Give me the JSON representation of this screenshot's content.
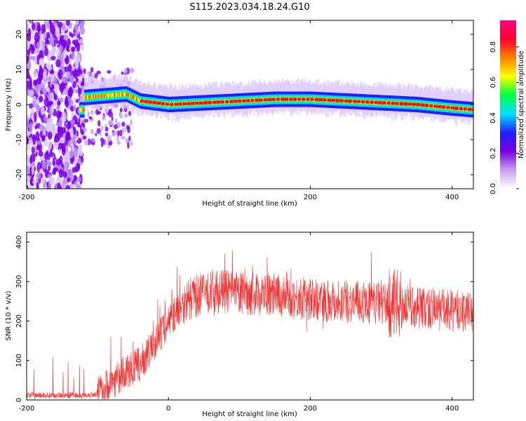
{
  "title": "S115.2023.034.18.24.G10",
  "chart_data": [
    {
      "type": "heatmap",
      "xlabel": "Height of straight line (km)",
      "ylabel": "Frequency (Hz)",
      "xlim": [
        -200,
        430
      ],
      "ylim": [
        -24,
        24
      ],
      "x_ticks": [
        -200,
        0,
        200,
        400
      ],
      "y_ticks": [
        -20,
        -10,
        0,
        10,
        20
      ],
      "colorbar": {
        "label": "Normalized spectral amplitude",
        "range": [
          0,
          0.95
        ],
        "ticks": [
          "0.0",
          "0.2",
          "0.4",
          "0.6",
          "0.8"
        ],
        "colors": [
          "#ffffff",
          "#c8a0f0",
          "#7a00e0",
          "#2020ff",
          "#00e0ff",
          "#00ff40",
          "#ffff00",
          "#ff8000",
          "#ff0030",
          "#ff0080"
        ]
      },
      "ridge": {
        "description_points_x": [
          -120,
          -60,
          -40,
          0,
          50,
          100,
          150,
          200,
          250,
          300,
          350,
          400,
          430
        ],
        "frequency_hz": [
          2,
          3,
          1,
          0,
          0.5,
          1,
          1.5,
          1.5,
          1,
          0.5,
          0,
          -1,
          -1.5
        ]
      }
    },
    {
      "type": "line",
      "xlabel": "Height of straight line (km)",
      "ylabel": "SNR (10 * v/v)",
      "xlim": [
        -200,
        430
      ],
      "ylim": [
        0,
        425
      ],
      "x_ticks": [
        -200,
        0,
        200,
        400
      ],
      "y_ticks": [
        0,
        100,
        200,
        300,
        400
      ],
      "series": [
        {
          "color": "#ee3333",
          "x": [
            -200,
            -150,
            -120,
            -100,
            -80,
            -60,
            -40,
            -20,
            -10,
            0,
            10,
            20,
            40,
            60,
            80,
            100,
            150,
            200,
            250,
            300,
            330,
            350,
            400,
            430
          ],
          "y": [
            12,
            12,
            12,
            15,
            45,
            70,
            90,
            140,
            170,
            200,
            220,
            245,
            265,
            275,
            275,
            270,
            265,
            255,
            250,
            245,
            240,
            235,
            225,
            225
          ]
        }
      ]
    }
  ]
}
